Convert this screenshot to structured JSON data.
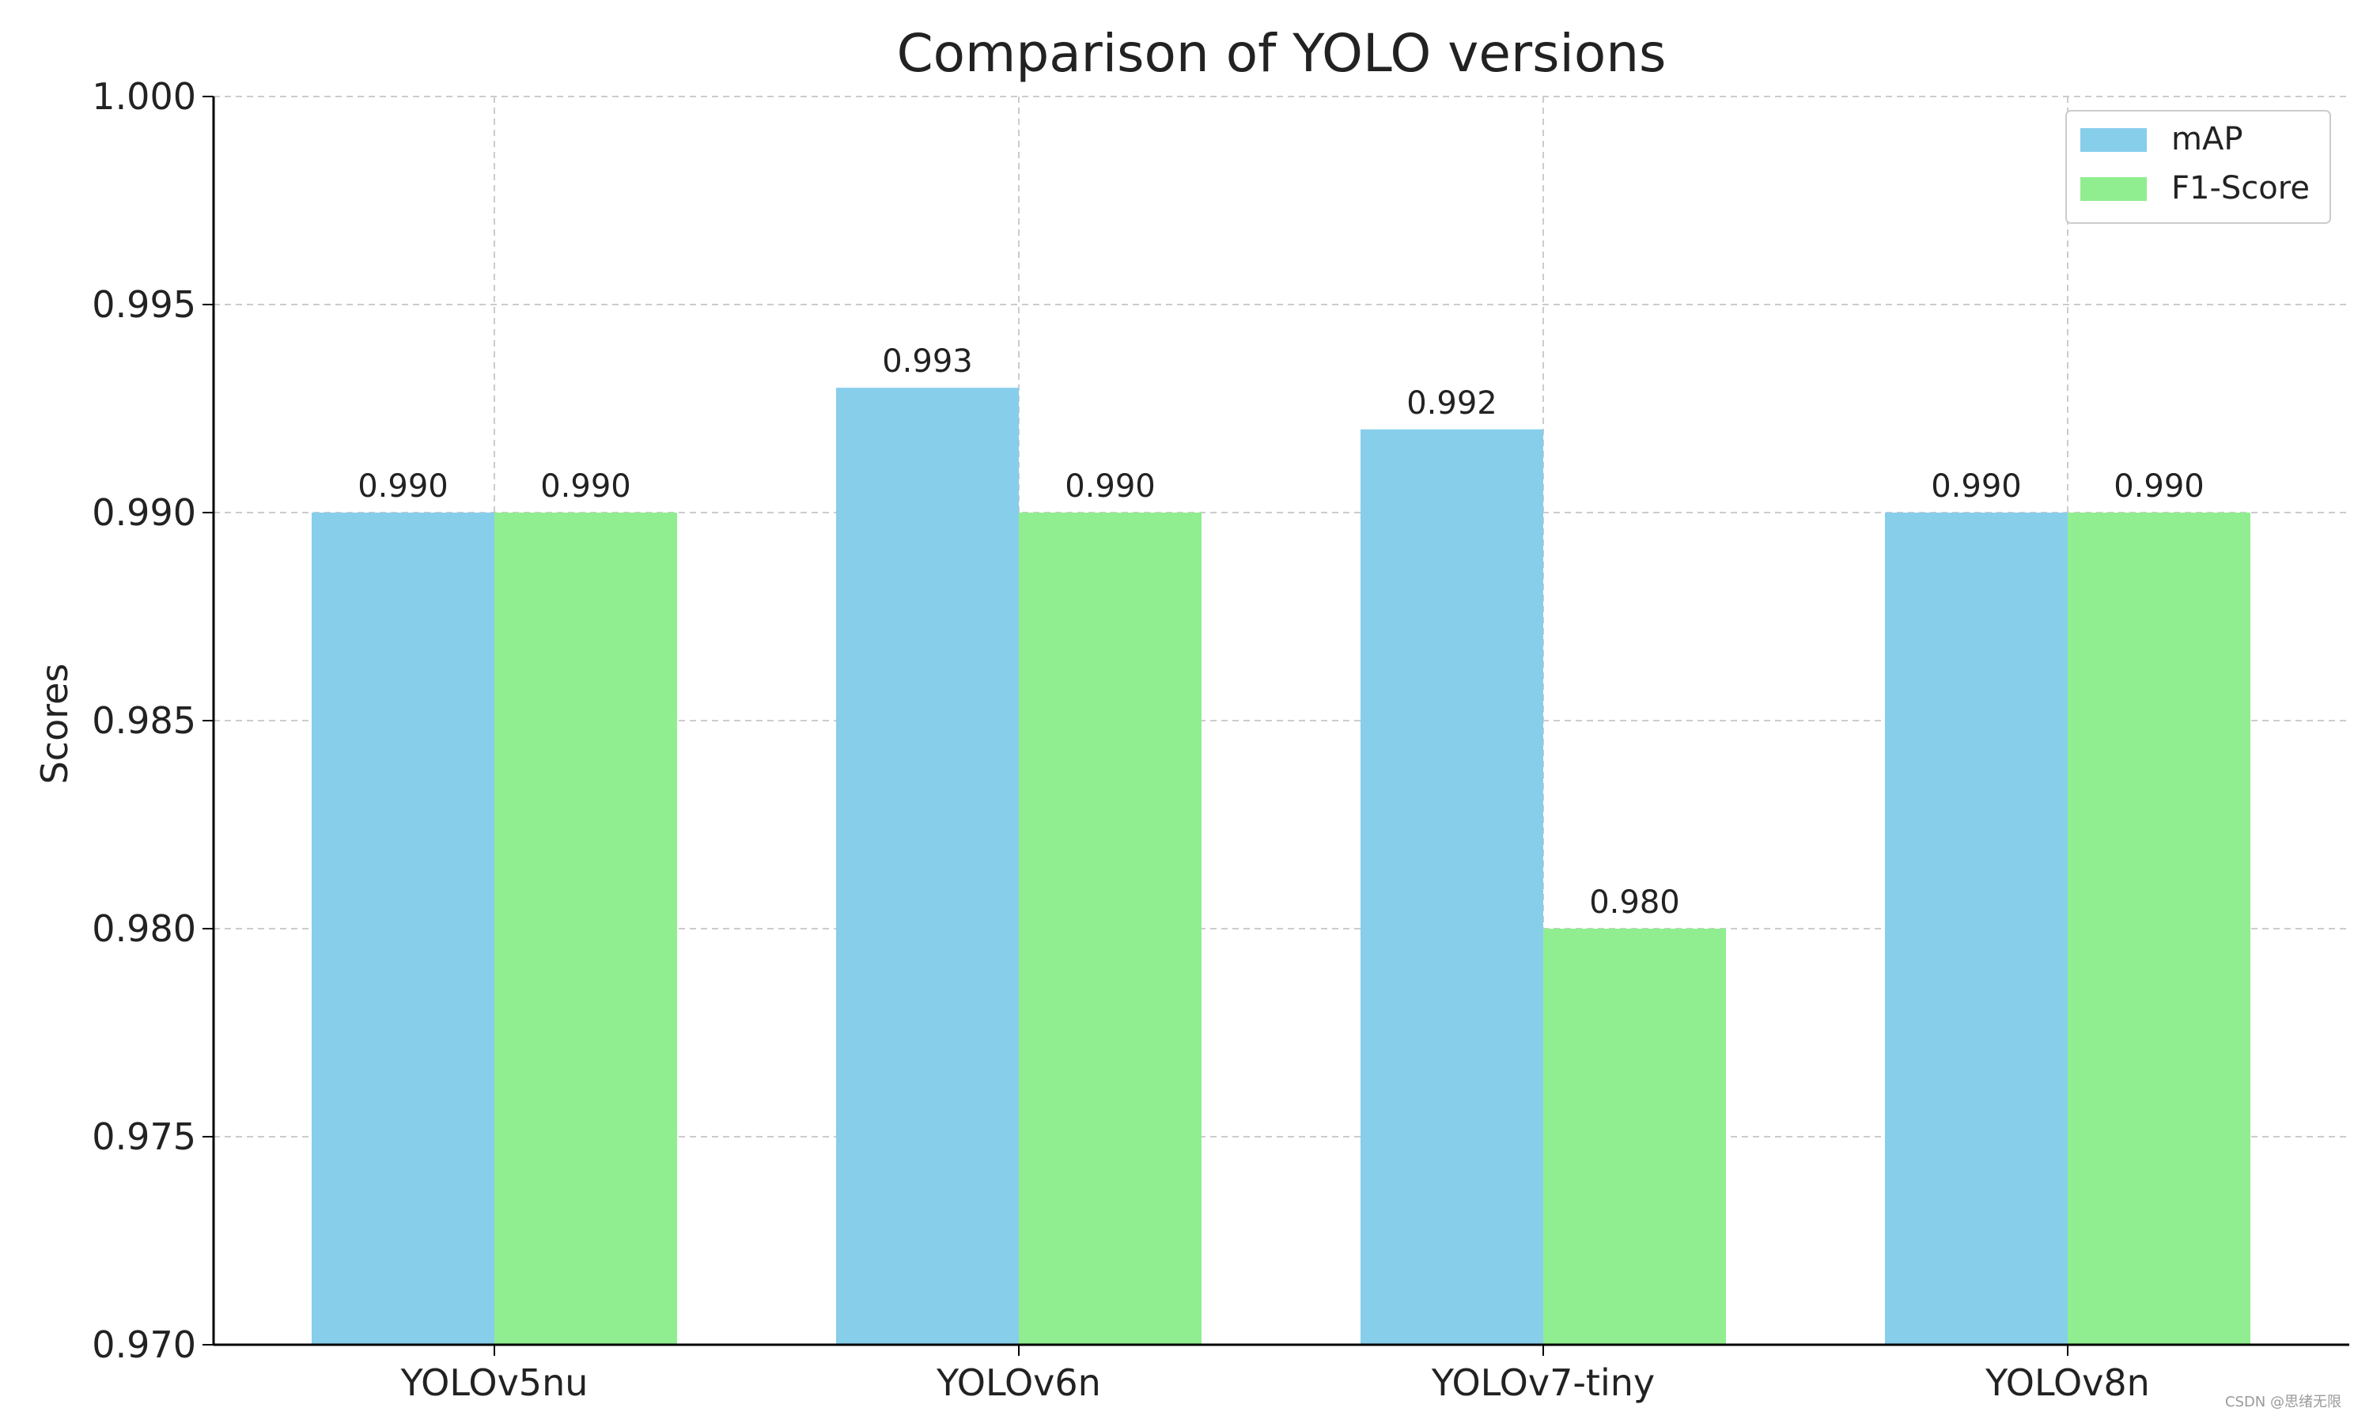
{
  "chart_data": {
    "type": "bar",
    "title": "Comparison of YOLO versions",
    "xlabel": "",
    "ylabel": "Scores",
    "categories": [
      "YOLOv5nu",
      "YOLOv6n",
      "YOLOv7-tiny",
      "YOLOv8n"
    ],
    "series": [
      {
        "name": "mAP",
        "values": [
          0.99,
          0.993,
          0.992,
          0.99
        ],
        "color": "#87CEEB"
      },
      {
        "name": "F1-Score",
        "values": [
          0.99,
          0.99,
          0.98,
          0.99
        ],
        "color": "#90EE90"
      }
    ],
    "ylim": [
      0.97,
      1.0
    ],
    "yticks": [
      "0.970",
      "0.975",
      "0.980",
      "0.985",
      "0.990",
      "0.995",
      "1.000"
    ],
    "data_labels": [
      [
        "0.990",
        "0.993",
        "0.992",
        "0.990"
      ],
      [
        "0.990",
        "0.990",
        "0.980",
        "0.990"
      ]
    ],
    "grid": true,
    "legend_position": "top-right"
  },
  "watermark": "CSDN @思绪无限"
}
